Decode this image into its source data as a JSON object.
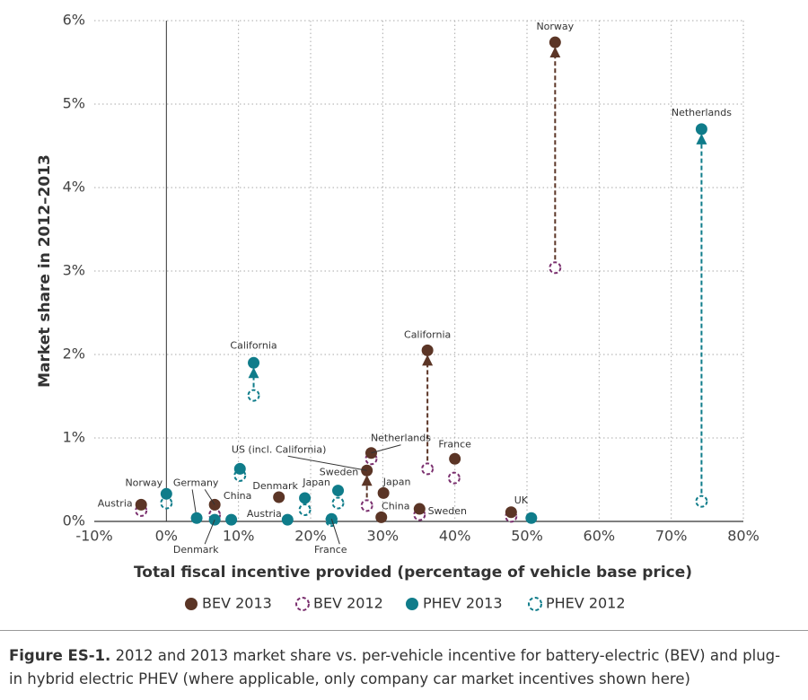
{
  "chart_data": {
    "type": "scatter",
    "xlabel": "Total fiscal incentive provided (percentage of vehicle base price)",
    "ylabel": "Market share in 2012–2013",
    "xlim": [
      -10,
      80
    ],
    "ylim": [
      0,
      6
    ],
    "xticks": [
      {
        "value": -10,
        "label": "-10%"
      },
      {
        "value": 0,
        "label": "0%"
      },
      {
        "value": 10,
        "label": "10%"
      },
      {
        "value": 20,
        "label": "20%"
      },
      {
        "value": 30,
        "label": "30%"
      },
      {
        "value": 40,
        "label": "40%"
      },
      {
        "value": 50,
        "label": "50%"
      },
      {
        "value": 60,
        "label": "60%"
      },
      {
        "value": 70,
        "label": "70%"
      },
      {
        "value": 80,
        "label": "80%"
      }
    ],
    "yticks": [
      {
        "value": 0,
        "label": "0%"
      },
      {
        "value": 1,
        "label": "1%"
      },
      {
        "value": 2,
        "label": "2%"
      },
      {
        "value": 3,
        "label": "3%"
      },
      {
        "value": 4,
        "label": "4%"
      },
      {
        "value": 5,
        "label": "5%"
      },
      {
        "value": 6,
        "label": "6%"
      }
    ],
    "grid": true,
    "series": [
      {
        "name": "BEV 2013",
        "color": "#5b3526",
        "marker": "filled",
        "x": [
          53.9,
          36.2,
          28.4,
          40.0,
          27.8,
          30.1,
          15.6,
          -3.5,
          6.7,
          35.1,
          47.8,
          29.8
        ],
        "values": [
          5.74,
          2.05,
          0.82,
          0.75,
          0.61,
          0.34,
          0.29,
          0.2,
          0.2,
          0.15,
          0.11,
          0.05
        ],
        "labels": [
          "Norway",
          "California",
          "Netherlands",
          "France",
          "US (incl. California)",
          "Japan",
          "Denmark",
          "Austria",
          "Germany",
          "Sweden",
          "UK",
          "China"
        ]
      },
      {
        "name": "BEV 2012",
        "color": "#7a2f6e",
        "marker": "open",
        "x": [
          53.9,
          36.2,
          28.4,
          39.9,
          27.8,
          -3.5,
          6.7,
          35.1,
          47.8
        ],
        "values": [
          3.04,
          0.63,
          0.75,
          0.52,
          0.19,
          0.13,
          0.08,
          0.08,
          0.06
        ]
      },
      {
        "name": "PHEV 2013",
        "color": "#0f7c8a",
        "marker": "filled",
        "x": [
          74.2,
          12.1,
          10.2,
          0,
          23.8,
          19.2,
          4.2,
          6.7,
          9.0,
          16.8,
          22.9,
          50.6
        ],
        "values": [
          4.7,
          1.9,
          0.63,
          0.33,
          0.37,
          0.28,
          0.04,
          0.02,
          0.02,
          0.02,
          0.03,
          0.04
        ],
        "labels": [
          "Netherlands",
          "California",
          null,
          "Norway",
          "Sweden",
          "Japan",
          null,
          "Denmark",
          "China",
          "Austria",
          "France",
          null
        ]
      },
      {
        "name": "PHEV 2012",
        "color": "#0f7c8a",
        "marker": "open",
        "x": [
          74.2,
          12.1,
          10.2,
          0,
          23.8,
          19.2,
          22.9
        ],
        "values": [
          0.24,
          1.51,
          0.55,
          0.22,
          0.22,
          0.14,
          0.01
        ]
      }
    ]
  },
  "caption": {
    "label": "Figure ES-1.",
    "text": "2012 and 2013 market share vs. per-vehicle incentive for battery-electric (BEV) and plug-in hybrid electric PHEV (where applicable, only company car market incentives shown here)"
  }
}
